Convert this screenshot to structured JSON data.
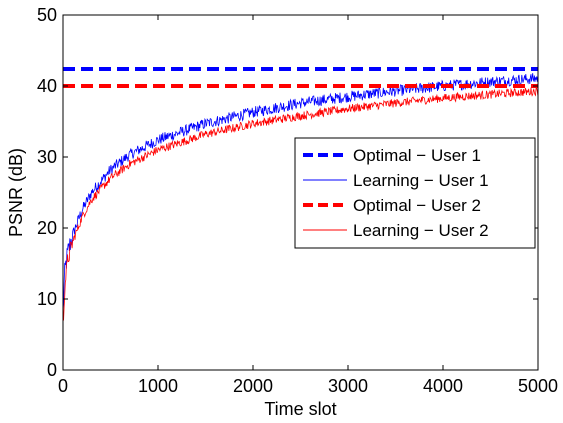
{
  "chart_data": {
    "type": "line",
    "title": "",
    "xlabel": "Time slot",
    "ylabel": "PSNR (dB)",
    "xlim": [
      0,
      5000
    ],
    "ylim": [
      0,
      50
    ],
    "xticks": [
      0,
      1000,
      2000,
      3000,
      4000,
      5000
    ],
    "yticks": [
      0,
      10,
      20,
      30,
      40,
      50
    ],
    "grid": false,
    "legend_position": "right",
    "series": [
      {
        "name": "Optimal − User 1",
        "color": "#0000ff",
        "style": "dashed",
        "x": [
          0,
          5000
        ],
        "y": [
          42.4,
          42.4
        ]
      },
      {
        "name": "Learning − User 1",
        "color": "#0000ff",
        "style": "solid",
        "noise": 0.8,
        "x": [
          0,
          20,
          50,
          100,
          200,
          300,
          500,
          700,
          1000,
          1500,
          2000,
          2500,
          3000,
          3500,
          4000,
          4500,
          5000
        ],
        "y": [
          8,
          14,
          16.5,
          19,
          22.5,
          25,
          28.2,
          30.3,
          32.4,
          34.7,
          36.3,
          37.6,
          38.5,
          39.3,
          40.0,
          40.6,
          41.1
        ]
      },
      {
        "name": "Optimal − User 2",
        "color": "#ff0000",
        "style": "dashed",
        "x": [
          0,
          5000
        ],
        "y": [
          40.0,
          40.0
        ]
      },
      {
        "name": "Learning − User 2",
        "color": "#ff0000",
        "style": "solid",
        "noise": 0.6,
        "x": [
          0,
          20,
          50,
          100,
          200,
          300,
          500,
          700,
          1000,
          1500,
          2000,
          2500,
          3000,
          3500,
          4000,
          4500,
          5000
        ],
        "y": [
          6,
          12,
          15.5,
          18,
          21.5,
          24,
          27,
          29,
          31,
          33.2,
          34.7,
          35.8,
          36.8,
          37.6,
          38.3,
          38.8,
          39.3
        ]
      }
    ]
  }
}
